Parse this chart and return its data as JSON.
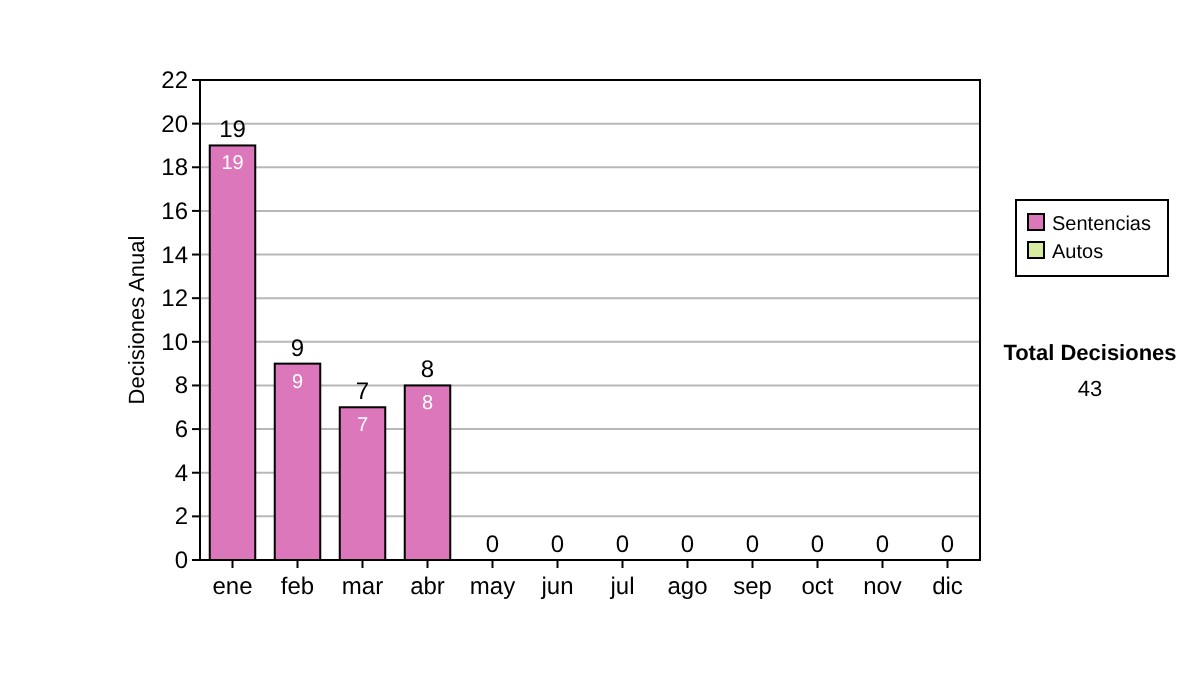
{
  "chart_data": {
    "type": "bar",
    "stacked": true,
    "ylabel": "Decisiones Anual",
    "categories": [
      "ene",
      "feb",
      "mar",
      "abr",
      "may",
      "jun",
      "jul",
      "ago",
      "sep",
      "oct",
      "nov",
      "dic"
    ],
    "series": [
      {
        "name": "Sentencias",
        "color": "#dd77bb",
        "values": [
          19,
          9,
          7,
          8,
          0,
          0,
          0,
          0,
          0,
          0,
          0,
          0
        ],
        "value_labels": [
          "19",
          "9",
          "7",
          "8",
          null,
          null,
          null,
          null,
          null,
          null,
          null,
          null
        ]
      },
      {
        "name": "Autos",
        "color": "#d8eca0",
        "values": [
          0,
          0,
          0,
          0,
          0,
          0,
          0,
          0,
          0,
          0,
          0,
          0
        ]
      }
    ],
    "totals": [
      "19",
      "9",
      "7",
      "8",
      "0",
      "0",
      "0",
      "0",
      "0",
      "0",
      "0",
      "0"
    ],
    "ylim": [
      0,
      22
    ],
    "yticks": [
      0,
      2,
      4,
      6,
      8,
      10,
      12,
      14,
      16,
      18,
      20,
      22
    ],
    "grid": "y",
    "legend": "right",
    "annotations": [
      "Total Decisiones",
      "43"
    ]
  }
}
